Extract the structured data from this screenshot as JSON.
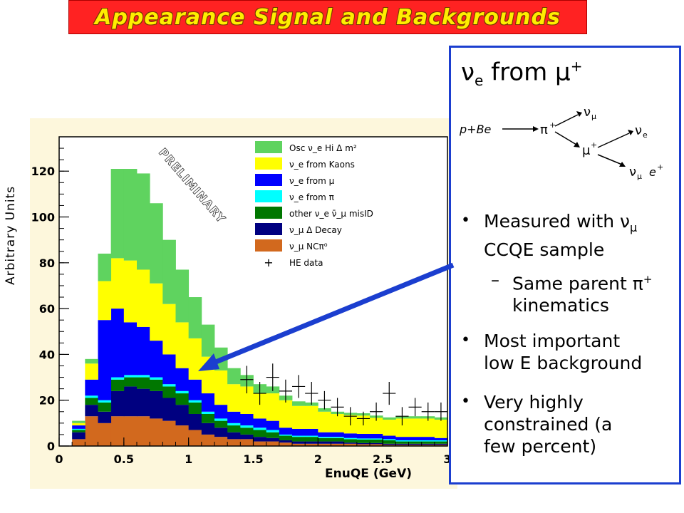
{
  "slide": {
    "title": "Appearance Signal and Backgrounds",
    "ylabel": "Arbitrary Units"
  },
  "chart_data": {
    "type": "bar",
    "stacked": true,
    "xlabel": "EnuQE (GeV)",
    "ylabel": "Arbitrary Units",
    "xlim": [
      0,
      3
    ],
    "ylim": [
      0,
      135
    ],
    "xticks": [
      "0",
      "0.5",
      "1",
      "1.5",
      "2",
      "2.5",
      "3"
    ],
    "yticks": [
      "0",
      "20",
      "40",
      "60",
      "80",
      "100",
      "120"
    ],
    "watermark": "PRELIMINARY",
    "bin_edges": [
      0.1,
      0.2,
      0.3,
      0.4,
      0.5,
      0.6,
      0.7,
      0.8,
      0.9,
      1.0,
      1.1,
      1.2,
      1.3,
      1.4,
      1.5,
      1.6,
      1.7,
      1.8,
      1.9,
      2.0,
      2.1,
      2.2,
      2.3,
      2.4,
      2.5,
      2.6,
      2.7,
      2.8,
      2.9,
      3.0
    ],
    "series": [
      {
        "name": "ν_μ NCπ⁰",
        "color": "#d2691e",
        "values": [
          3,
          13,
          10,
          13,
          13,
          13,
          12,
          11,
          9,
          7,
          5,
          4,
          3,
          3,
          2,
          2,
          1.5,
          1,
          1,
          1,
          1,
          1,
          0.8,
          0.8,
          0.5,
          0.5,
          0.5,
          0.5,
          0.5
        ]
      },
      {
        "name": "ν_μ Δ Decay",
        "color": "#000080",
        "values": [
          3,
          5,
          5,
          11,
          13,
          12,
          12,
          10,
          9,
          7,
          5,
          4,
          3,
          2,
          2,
          1.5,
          1,
          1,
          1,
          1,
          1,
          0.5,
          0.5,
          0.5,
          0.5,
          0.5,
          0.5,
          0.5,
          0.5
        ]
      },
      {
        "name": "other ν_e ν̄_μ misID",
        "color": "#007700",
        "values": [
          1,
          3,
          4,
          5,
          4,
          5,
          5,
          5,
          5,
          5,
          4,
          3,
          3,
          3,
          3,
          2.5,
          2,
          2,
          2,
          1.5,
          1.5,
          1.5,
          1.5,
          1.5,
          1.5,
          1,
          1,
          1,
          1
        ]
      },
      {
        "name": "ν_e from π",
        "color": "#00ffff",
        "values": [
          0.5,
          1,
          1,
          1,
          1,
          1,
          1,
          1,
          1,
          1,
          1,
          1,
          1,
          1,
          1,
          1,
          0.5,
          0.5,
          0.5,
          0.5,
          0.5,
          0.5,
          0.5,
          0.5,
          0.5,
          0.5,
          0.5,
          0.5,
          0.5
        ]
      },
      {
        "name": "ν_e from μ",
        "color": "#0000ff",
        "values": [
          1.5,
          7,
          35,
          30,
          23,
          21,
          16,
          13,
          10,
          9,
          8,
          6,
          5,
          5,
          4,
          4,
          3,
          3,
          3,
          2,
          2,
          2,
          2,
          2,
          1.5,
          1.5,
          1.5,
          1.5,
          1
        ]
      },
      {
        "name": "ν_e from Kaons",
        "color": "#ffff00",
        "values": [
          1,
          7,
          17,
          22,
          27,
          25,
          25,
          22,
          20,
          18,
          16,
          15,
          12,
          12,
          11,
          12,
          12,
          10,
          10,
          9,
          8,
          8,
          8,
          7,
          7,
          8,
          8,
          8,
          8
        ]
      },
      {
        "name": "Osc ν_e Hi Δm²",
        "color": "#5fd35f",
        "values": [
          1,
          2,
          12,
          39,
          40,
          42,
          35,
          28,
          23,
          18,
          14,
          10,
          7,
          5,
          4,
          3,
          2,
          2,
          1.5,
          1.5,
          1,
          1,
          1,
          1,
          1,
          1,
          1,
          1,
          1
        ]
      }
    ],
    "he_data": {
      "name": "HE data",
      "x": [
        1.45,
        1.55,
        1.65,
        1.75,
        1.85,
        1.95,
        2.05,
        2.15,
        2.25,
        2.35,
        2.45,
        2.55,
        2.65,
        2.75,
        2.85,
        2.95
      ],
      "y": [
        29,
        23,
        30,
        24,
        26,
        23,
        20,
        17,
        13,
        12,
        15,
        23,
        13,
        17,
        15,
        15
      ],
      "err": [
        6,
        5,
        6,
        5,
        5,
        5,
        4,
        4,
        4,
        3,
        4,
        5,
        4,
        4,
        4,
        4
      ]
    },
    "legend": [
      {
        "label": "Osc ν_e Hi Δ m²",
        "color": "#5fd35f",
        "kind": "box"
      },
      {
        "label": "ν_e from Kaons",
        "color": "#ffff00",
        "kind": "box"
      },
      {
        "label": "ν_e from μ",
        "color": "#0000ff",
        "kind": "box"
      },
      {
        "label": "ν_e from π",
        "color": "#00ffff",
        "kind": "box"
      },
      {
        "label": "other ν_e ν̄_μ misID",
        "color": "#007700",
        "kind": "box"
      },
      {
        "label": "ν_μ Δ Decay",
        "color": "#000080",
        "kind": "box"
      },
      {
        "label": "ν_μ NCπ⁰",
        "color": "#d2691e",
        "kind": "box"
      },
      {
        "label": "HE data",
        "color": "#000000",
        "kind": "marker"
      }
    ],
    "legend_position": "top-right"
  },
  "info": {
    "heading_nu": "ν",
    "heading_sub": "e",
    "heading_from": " from μ",
    "heading_sup": "+",
    "diagram": {
      "source": "p+Be",
      "pion": "π",
      "numu_top": "ν",
      "muon": "μ",
      "nue": "ν",
      "numu_bottom": "ν",
      "positron": "e",
      "sub_mu": "μ",
      "sub_e": "e",
      "plus": "+"
    },
    "bullet1_line1": "Measured with ν",
    "bullet1_sub": "μ",
    "bullet1_line2": "CCQE sample",
    "sub_bullet_line1": "Same parent π",
    "sub_bullet_sup": "+",
    "sub_bullet_line2": "kinematics",
    "bullet2_line1": "Most important",
    "bullet2_line2": "low E background",
    "bullet3_line1": "Very highly",
    "bullet3_line2": "constrained (a",
    "bullet3_line3": "few percent)",
    "dash": "–",
    "bullet": "•"
  },
  "arrow_color": "#1b3ecf"
}
